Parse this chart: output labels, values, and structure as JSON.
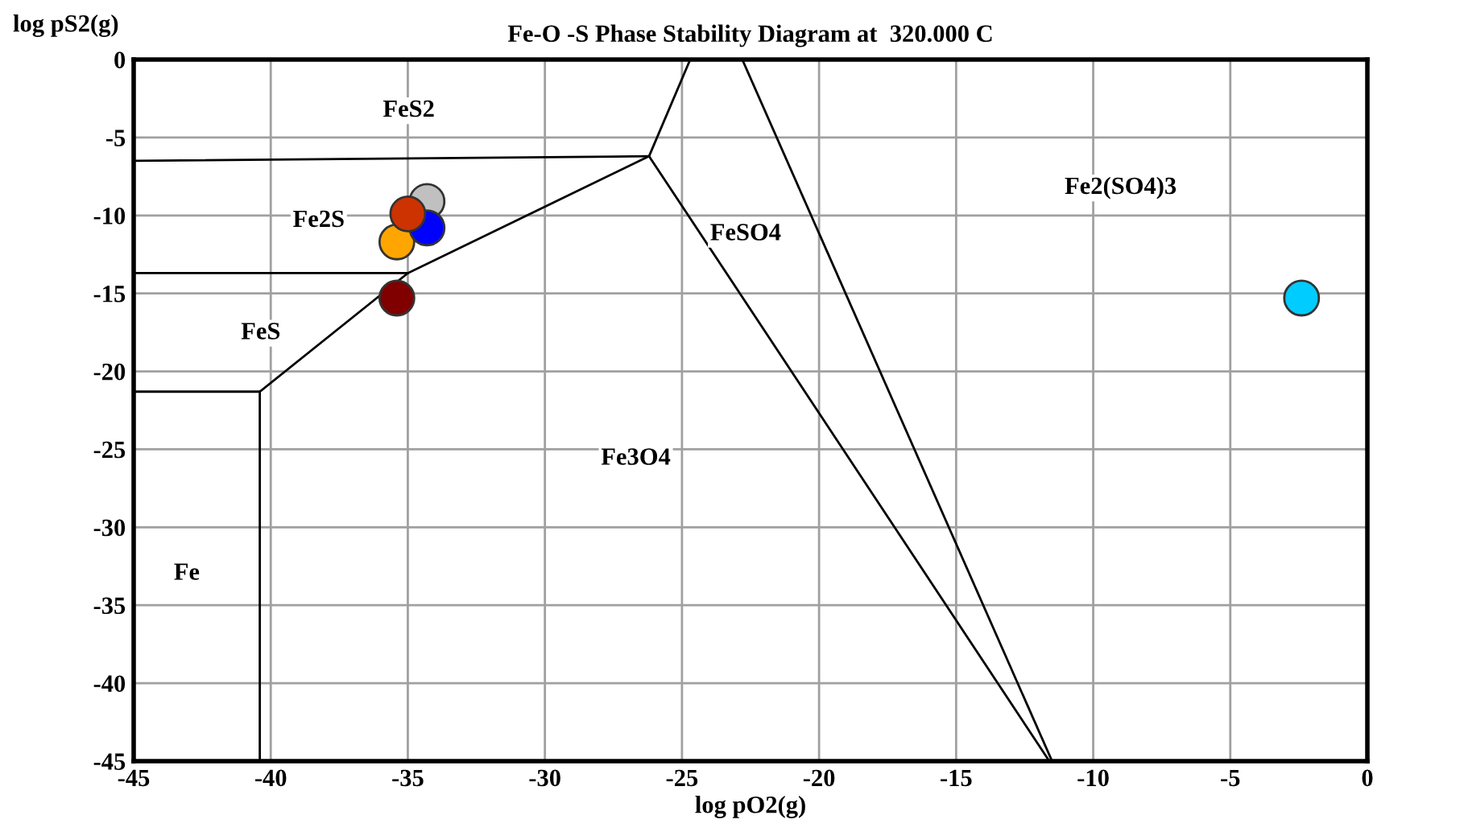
{
  "chart_data": {
    "type": "scatter",
    "title": "Fe-O -S Phase Stability Diagram at  320.000 C",
    "xlabel": "log pO2(g)",
    "ylabel": "log pS2(g)",
    "xlim": [
      -45,
      0
    ],
    "ylim": [
      -45,
      0
    ],
    "xticks": [
      -45,
      -40,
      -35,
      -30,
      -25,
      -20,
      -15,
      -10,
      -5,
      0
    ],
    "yticks": [
      -45,
      -40,
      -35,
      -30,
      -25,
      -20,
      -15,
      -10,
      -5,
      0
    ],
    "grid": true,
    "legend": false,
    "series": [
      {
        "type": "line",
        "marker": "none",
        "color": "#000000",
        "x": [
          -45,
          -26.2
        ],
        "values": [
          -6.5,
          -6.2
        ]
      },
      {
        "type": "line",
        "marker": "none",
        "color": "#000000",
        "x": [
          -45,
          -35.0
        ],
        "values": [
          -13.7,
          -13.7
        ]
      },
      {
        "type": "line",
        "marker": "none",
        "color": "#000000",
        "x": [
          -45,
          -40.4,
          -40.4
        ],
        "values": [
          -21.3,
          -21.3,
          -45
        ]
      },
      {
        "type": "line",
        "marker": "none",
        "color": "#000000",
        "x": [
          -40.4,
          -35.0,
          -26.2
        ],
        "values": [
          -21.3,
          -13.7,
          -6.2
        ]
      },
      {
        "type": "line",
        "marker": "none",
        "color": "#000000",
        "x": [
          -24.7,
          -26.2,
          -11.6
        ],
        "values": [
          0,
          -6.2,
          -45
        ]
      },
      {
        "type": "line",
        "marker": "none",
        "color": "#000000",
        "x": [
          -22.8,
          -11.5
        ],
        "values": [
          0,
          -45
        ]
      },
      {
        "marker": "circle",
        "color": "#800000",
        "x": [
          -35.4
        ],
        "values": [
          -15.3
        ]
      },
      {
        "marker": "circle",
        "color": "#ffa500",
        "x": [
          -35.4
        ],
        "values": [
          -11.7
        ]
      },
      {
        "marker": "circle",
        "color": "#c0c0c0",
        "x": [
          -34.3
        ],
        "values": [
          -9.1
        ]
      },
      {
        "marker": "circle",
        "color": "#0000ff",
        "x": [
          -34.3
        ],
        "values": [
          -10.8
        ]
      },
      {
        "marker": "circle",
        "color": "#00ccff",
        "x": [
          -2.4
        ],
        "values": [
          -15.3
        ]
      },
      {
        "marker": "circle",
        "color": "#cc3300",
        "x": [
          -35.0
        ],
        "values": [
          -9.9
        ]
      }
    ],
    "annotations": [
      "FeS2",
      "Fe2S",
      "FeSO4",
      "Fe2(SO4)3",
      "FeS",
      "Fe3O4",
      "Fe"
    ]
  }
}
